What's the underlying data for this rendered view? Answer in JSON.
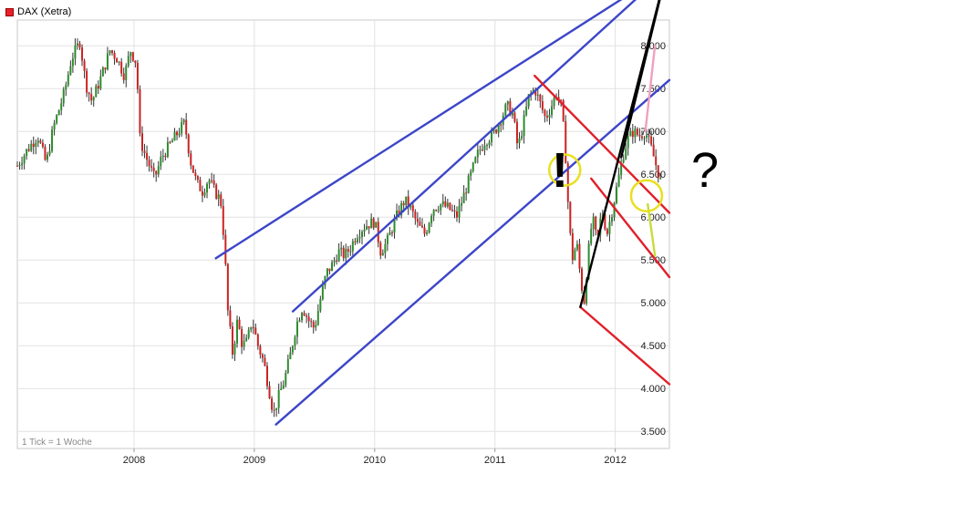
{
  "legend": {
    "label": "DAX (Xetra)",
    "color": "#e8202a"
  },
  "note": "1 Tick = 1 Woche",
  "annotations": {
    "exclamation": "!",
    "question": "?"
  },
  "chart_data": {
    "type": "candlestick",
    "title": "",
    "x_ticks": [
      "2008",
      "2009",
      "2010",
      "2011",
      "2012"
    ],
    "x_tick_dates": [
      2008.0,
      2009.0,
      2010.0,
      2011.0,
      2012.0
    ],
    "y_ticks": [
      3500,
      4000,
      4500,
      5000,
      5500,
      6000,
      6500,
      7000,
      7500,
      8000
    ],
    "y_tick_labels": [
      "3.500",
      "4.000",
      "4.500",
      "5.000",
      "5.500",
      "6.000",
      "6.500",
      "7.000",
      "7.500",
      "8.000"
    ],
    "xlim": [
      2007.03,
      2012.45
    ],
    "ylim": [
      3300,
      8300
    ],
    "grid": true,
    "up_color": "#2e8b2e",
    "down_color": "#cc2222",
    "price_path": [
      [
        2007.03,
        6600
      ],
      [
        2007.12,
        6800
      ],
      [
        2007.2,
        6950
      ],
      [
        2007.27,
        6620
      ],
      [
        2007.33,
        7050
      ],
      [
        2007.42,
        7450
      ],
      [
        2007.48,
        7850
      ],
      [
        2007.55,
        8050
      ],
      [
        2007.6,
        7550
      ],
      [
        2007.65,
        7350
      ],
      [
        2007.73,
        7650
      ],
      [
        2007.8,
        7950
      ],
      [
        2007.86,
        7850
      ],
      [
        2007.92,
        7650
      ],
      [
        2007.97,
        7950
      ],
      [
        2008.02,
        7800
      ],
      [
        2008.05,
        6900
      ],
      [
        2008.1,
        6700
      ],
      [
        2008.17,
        6450
      ],
      [
        2008.23,
        6700
      ],
      [
        2008.3,
        6850
      ],
      [
        2008.37,
        7000
      ],
      [
        2008.42,
        7100
      ],
      [
        2008.47,
        6650
      ],
      [
        2008.52,
        6400
      ],
      [
        2008.57,
        6300
      ],
      [
        2008.62,
        6450
      ],
      [
        2008.67,
        6300
      ],
      [
        2008.72,
        6200
      ],
      [
        2008.75,
        5700
      ],
      [
        2008.78,
        4900
      ],
      [
        2008.82,
        4400
      ],
      [
        2008.86,
        4800
      ],
      [
        2008.9,
        4500
      ],
      [
        2008.94,
        4550
      ],
      [
        2008.98,
        4800
      ],
      [
        2009.03,
        4500
      ],
      [
        2009.08,
        4300
      ],
      [
        2009.12,
        4000
      ],
      [
        2009.16,
        3700
      ],
      [
        2009.2,
        3900
      ],
      [
        2009.25,
        4100
      ],
      [
        2009.3,
        4400
      ],
      [
        2009.35,
        4750
      ],
      [
        2009.4,
        4950
      ],
      [
        2009.45,
        4800
      ],
      [
        2009.5,
        4700
      ],
      [
        2009.55,
        5050
      ],
      [
        2009.6,
        5350
      ],
      [
        2009.65,
        5450
      ],
      [
        2009.7,
        5600
      ],
      [
        2009.75,
        5550
      ],
      [
        2009.8,
        5650
      ],
      [
        2009.85,
        5800
      ],
      [
        2009.92,
        5900
      ],
      [
        2010.0,
        5950
      ],
      [
        2010.05,
        5600
      ],
      [
        2010.1,
        5700
      ],
      [
        2010.18,
        6000
      ],
      [
        2010.25,
        6200
      ],
      [
        2010.3,
        6100
      ],
      [
        2010.36,
        5900
      ],
      [
        2010.42,
        5800
      ],
      [
        2010.48,
        6100
      ],
      [
        2010.55,
        6150
      ],
      [
        2010.62,
        6100
      ],
      [
        2010.68,
        6000
      ],
      [
        2010.74,
        6250
      ],
      [
        2010.8,
        6500
      ],
      [
        2010.86,
        6750
      ],
      [
        2010.92,
        6900
      ],
      [
        2010.98,
        6950
      ],
      [
        2011.05,
        7150
      ],
      [
        2011.1,
        7300
      ],
      [
        2011.15,
        7200
      ],
      [
        2011.19,
        6800
      ],
      [
        2011.23,
        7050
      ],
      [
        2011.28,
        7400
      ],
      [
        2011.33,
        7500
      ],
      [
        2011.37,
        7350
      ],
      [
        2011.42,
        7150
      ],
      [
        2011.47,
        7300
      ],
      [
        2011.51,
        7450
      ],
      [
        2011.55,
        7300
      ],
      [
        2011.58,
        6900
      ],
      [
        2011.61,
        6100
      ],
      [
        2011.64,
        5500
      ],
      [
        2011.68,
        5700
      ],
      [
        2011.71,
        5300
      ],
      [
        2011.74,
        5000
      ],
      [
        2011.77,
        5500
      ],
      [
        2011.81,
        6000
      ],
      [
        2011.85,
        5700
      ],
      [
        2011.89,
        6100
      ],
      [
        2011.93,
        5800
      ],
      [
        2011.97,
        6050
      ],
      [
        2012.02,
        6400
      ],
      [
        2012.06,
        6700
      ],
      [
        2012.1,
        6900
      ],
      [
        2012.15,
        7000
      ],
      [
        2012.2,
        6950
      ],
      [
        2012.25,
        7000
      ],
      [
        2012.3,
        6800
      ],
      [
        2012.34,
        6600
      ],
      [
        2012.38,
        6400
      ]
    ],
    "trendlines": [
      {
        "color": "#3c46c8",
        "points": [
          [
            2008.68,
            5520
          ],
          [
            2012.45,
            8900
          ]
        ]
      },
      {
        "color": "#3c46c8",
        "points": [
          [
            2009.32,
            4900
          ],
          [
            2012.45,
            8900
          ]
        ]
      },
      {
        "color": "#3c46c8",
        "points": [
          [
            2009.18,
            3580
          ],
          [
            2012.45,
            7600
          ]
        ]
      },
      {
        "color": "#e0202a",
        "points": [
          [
            2011.33,
            7650
          ],
          [
            2012.45,
            6050
          ]
        ]
      },
      {
        "color": "#e0202a",
        "points": [
          [
            2011.8,
            6450
          ],
          [
            2012.45,
            5300
          ]
        ]
      },
      {
        "color": "#e0202a",
        "points": [
          [
            2011.71,
            4950
          ],
          [
            2012.45,
            4050
          ]
        ]
      },
      {
        "color": "#000000",
        "points": [
          [
            2011.71,
            4950
          ],
          [
            2012.45,
            9000
          ]
        ]
      },
      {
        "color": "#000000",
        "points": [
          [
            2012.05,
            6700
          ],
          [
            2012.45,
            9000
          ]
        ]
      },
      {
        "color": "#f0a0c0",
        "points": [
          [
            2012.25,
            7000
          ],
          [
            2012.33,
            8000
          ]
        ]
      },
      {
        "color": "#c8dc3c",
        "points": [
          [
            2012.27,
            6150
          ],
          [
            2012.33,
            5550
          ]
        ]
      }
    ],
    "highlight_circles": [
      {
        "x": 2011.58,
        "y": 6550
      },
      {
        "x": 2012.26,
        "y": 6250
      }
    ]
  }
}
